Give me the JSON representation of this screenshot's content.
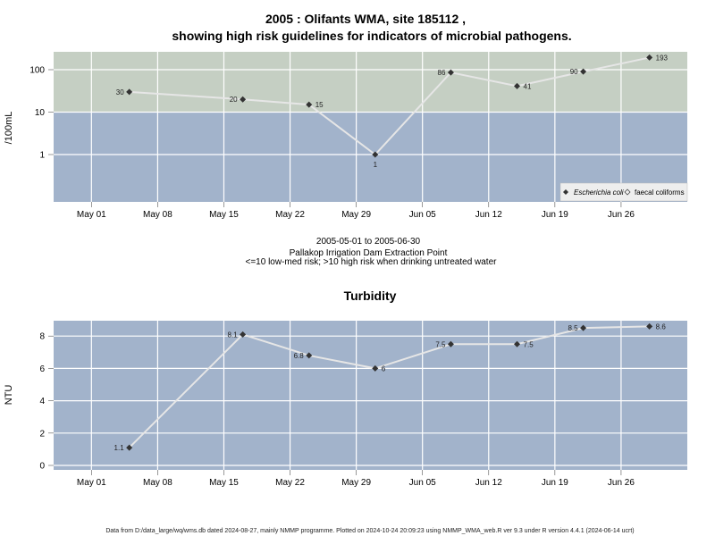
{
  "chart_data": [
    {
      "type": "line",
      "title_line1": "2005 : Olifants WMA, site 185112 ,",
      "title_line2": "showing high risk guidelines for indicators of microbial pathogens.",
      "ylabel": "/100mL",
      "y_scale": "log",
      "y_ticks": [
        "1",
        "10",
        "100"
      ],
      "x_ticks": [
        "May 01",
        "May 08",
        "May 15",
        "May 22",
        "May 29",
        "Jun 05",
        "Jun 12",
        "Jun 19",
        "Jun 26"
      ],
      "threshold": 10,
      "colors": {
        "high_risk": "#c5cfc3",
        "low_risk": "#a2b3cb",
        "line": "#e8e8e8",
        "point": "#333333"
      },
      "legend": {
        "placement": "bottom-right",
        "items": [
          "Escherichia coli",
          "faecal coliforms"
        ]
      },
      "series": [
        {
          "name": "Escherichia coli",
          "x": [
            "2005-05-05",
            "2005-05-17",
            "2005-05-24",
            "2005-05-31",
            "2005-06-08",
            "2005-06-15",
            "2005-06-22",
            "2005-06-29"
          ],
          "y": [
            30,
            20,
            15,
            1,
            86,
            41,
            90,
            193
          ],
          "labels": [
            "30",
            "20",
            "15",
            "1",
            "86",
            "41",
            "90",
            "193"
          ]
        }
      ],
      "caption": [
        "2005-05-01 to 2005-06-30",
        "Pallakop Irrigation Dam Extraction Point",
        "<=10 low-med risk; >10 high risk when drinking untreated water"
      ]
    },
    {
      "type": "line",
      "title": "Turbidity",
      "ylabel": "NTU",
      "y_ticks": [
        "0",
        "2",
        "4",
        "6",
        "8"
      ],
      "x_ticks": [
        "May 01",
        "May 08",
        "May 15",
        "May 22",
        "May 29",
        "Jun 05",
        "Jun 12",
        "Jun 19",
        "Jun 26"
      ],
      "series": [
        {
          "x": [
            "2005-05-05",
            "2005-05-17",
            "2005-05-24",
            "2005-05-31",
            "2005-06-08",
            "2005-06-15",
            "2005-06-22",
            "2005-06-29"
          ],
          "y": [
            1.1,
            8.1,
            6.8,
            6,
            7.5,
            7.5,
            8.5,
            8.6
          ],
          "labels": [
            "1.1",
            "8.1",
            "6.8",
            "6",
            "7.5",
            "7.5",
            "8.5",
            "8.6"
          ]
        }
      ]
    }
  ],
  "footer": "Data from D:/data_large/wq/wms.db dated 2024-08-27, mainly NMMP programme. Plotted on 2024-10-24 20:09:23 using NMMP_WMA_web.R ver 9.3 under R version 4.4.1 (2024-06-14 ucrt)"
}
